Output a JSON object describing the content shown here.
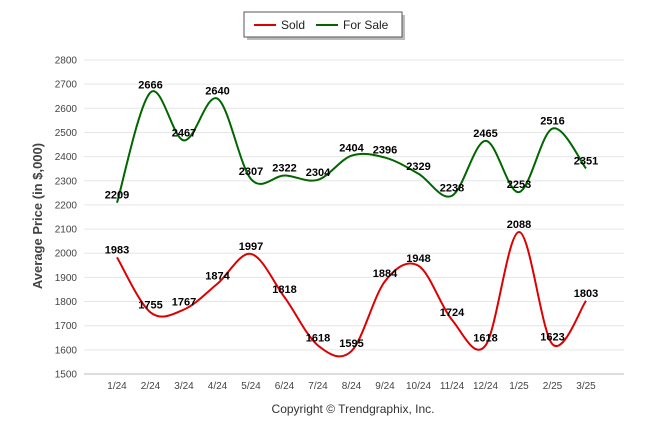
{
  "chart_data": {
    "type": "line",
    "ylabel": "Average Price (in $,000)",
    "xlabel": "",
    "ylim": [
      1500,
      2800
    ],
    "yticks": [
      1500,
      1600,
      1700,
      1800,
      1900,
      2000,
      2100,
      2200,
      2300,
      2400,
      2500,
      2600,
      2700,
      2800
    ],
    "grid": true,
    "legend_position": "top-center",
    "categories": [
      "1/24",
      "2/24",
      "3/24",
      "4/24",
      "5/24",
      "6/24",
      "7/24",
      "8/24",
      "9/24",
      "10/24",
      "11/24",
      "12/24",
      "1/25",
      "2/25",
      "3/25"
    ],
    "series": [
      {
        "name": "Sold",
        "color": "#dd0000",
        "values": [
          1983,
          1755,
          1767,
          1874,
          1997,
          1818,
          1618,
          1595,
          1884,
          1948,
          1724,
          1618,
          2088,
          1623,
          1803
        ]
      },
      {
        "name": "For Sale",
        "color": "#006600",
        "values": [
          2209,
          2666,
          2467,
          2640,
          2307,
          2322,
          2304,
          2404,
          2396,
          2329,
          2238,
          2465,
          2253,
          2516,
          2351
        ]
      }
    ],
    "credit": "Copyright © Trendgraphix, Inc."
  }
}
